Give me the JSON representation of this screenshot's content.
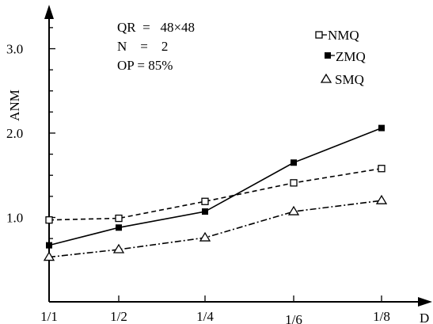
{
  "chart_data": {
    "type": "line",
    "title": "",
    "xlabel": "D",
    "ylabel": "ANM",
    "categories": [
      "1/1",
      "1/2",
      "1/4",
      "1/6",
      "1/8"
    ],
    "x_values": [
      1,
      2,
      4,
      6,
      8
    ],
    "ylim": [
      0,
      3.5
    ],
    "yticks": [
      "1.0",
      "2.0",
      "3.0"
    ],
    "ytick_values": [
      1.0,
      2.0,
      3.0
    ],
    "grid": false,
    "legend_position": "top-right",
    "annotations": [
      "QR  =   48×48",
      "N    =    2",
      "OP = 85%"
    ],
    "series": [
      {
        "name": "NMQ",
        "style": "dashed",
        "marker": "open-square",
        "values": [
          0.97,
          0.99,
          1.19,
          1.41,
          1.58
        ]
      },
      {
        "name": "ZMQ",
        "style": "solid",
        "marker": "filled-square",
        "values": [
          0.67,
          0.88,
          1.07,
          1.65,
          2.06
        ]
      },
      {
        "name": "SMQ",
        "style": "dash-dot",
        "marker": "open-triangle",
        "values": [
          0.53,
          0.62,
          0.76,
          1.07,
          1.2
        ]
      }
    ]
  }
}
